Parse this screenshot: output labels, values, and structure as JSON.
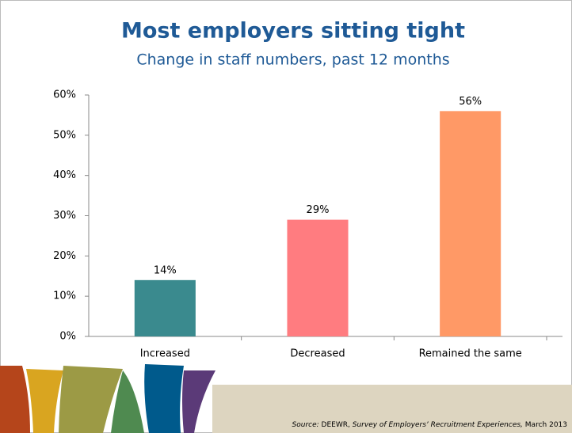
{
  "chart_data": {
    "type": "bar",
    "title": "Most employers sitting tight",
    "subtitle": "Change in staff numbers, past 12 months",
    "categories": [
      "Increased",
      "Decreased",
      "Remained the same"
    ],
    "values": [
      14,
      29,
      56
    ],
    "value_labels": [
      "14%",
      "29%",
      "56%"
    ],
    "colors": [
      "#3a8a8e",
      "#ff7c80",
      "#ff9966"
    ],
    "ylim": [
      0,
      60
    ],
    "yticks": [
      {
        "value": 0,
        "label": "0%"
      },
      {
        "value": 10,
        "label": "10%"
      },
      {
        "value": 20,
        "label": "20%"
      },
      {
        "value": 30,
        "label": "30%"
      },
      {
        "value": 40,
        "label": "40%"
      },
      {
        "value": 50,
        "label": "50%"
      },
      {
        "value": 60,
        "label": "60%"
      }
    ],
    "grid": false
  },
  "source": {
    "label": "Source:",
    "org": "DEEWR,",
    "title": "Survey of Employers’ Recruitment Experiences,",
    "date": "March 2013"
  }
}
